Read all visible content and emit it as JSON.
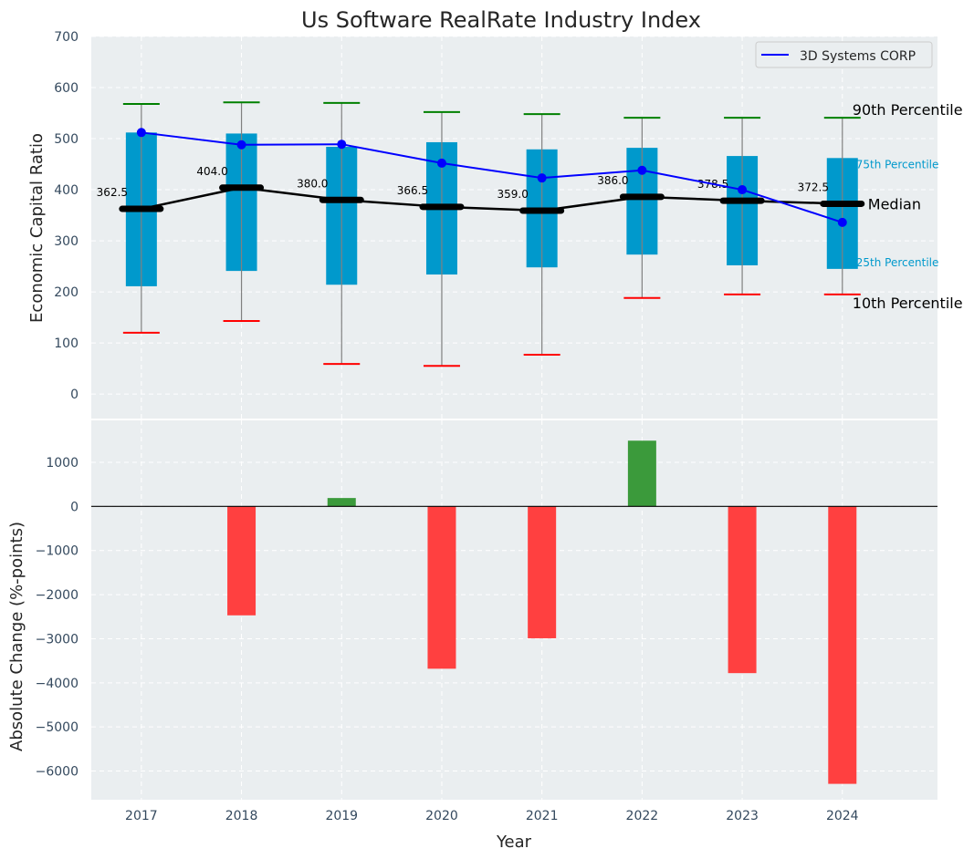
{
  "chart_data": [
    {
      "type": "box-percentile",
      "title": "Us Software RealRate Industry Index",
      "xlabel": "",
      "ylabel": "Economic Capital Ratio",
      "ylim": [
        -48,
        700
      ],
      "yticks": [
        0,
        100,
        200,
        300,
        400,
        500,
        600,
        700
      ],
      "xlim": [
        2016.5,
        2024.95
      ],
      "grid": true,
      "legend": {
        "position": "top-right",
        "entries": [
          "3D Systems CORP"
        ]
      },
      "categories": [
        "2017",
        "2018",
        "2019",
        "2020",
        "2021",
        "2022",
        "2023",
        "2024"
      ],
      "p10": [
        120,
        143,
        59,
        55,
        77,
        188,
        195,
        195
      ],
      "p25": [
        211,
        241,
        214,
        234,
        248,
        273,
        252,
        245
      ],
      "median": [
        362.5,
        404.0,
        380.0,
        366.5,
        359.0,
        386.0,
        378.5,
        372.5
      ],
      "p75": [
        512,
        510,
        484,
        493,
        479,
        482,
        466,
        462
      ],
      "p90": [
        568,
        571,
        570,
        552,
        548,
        541,
        541,
        541
      ],
      "median_labels": [
        "362.5",
        "404.0",
        "380.0",
        "366.5",
        "359.0",
        "386.0",
        "378.5",
        "372.5"
      ],
      "series": [
        {
          "name": "3D Systems CORP",
          "values": [
            512,
            488,
            489,
            452,
            423,
            438,
            400,
            336
          ],
          "color": "#0000ff"
        }
      ],
      "annotations": {
        "p90": "90th Percentile",
        "p75": "75th Percentile",
        "median": "Median",
        "p25": "25th Percentile",
        "p10": "10th Percentile"
      },
      "colors": {
        "box": "#0099cc",
        "p90": "#008000",
        "p10": "#ff0000",
        "median": "#000000",
        "whisker": "#808080",
        "background": "#eaeef0"
      }
    },
    {
      "type": "bar",
      "xlabel": "Year",
      "ylabel": "Absolute Change (%-points)",
      "ylim": [
        -6650,
        1950
      ],
      "yticks": [
        1000,
        0,
        -1000,
        -2000,
        -3000,
        -4000,
        -5000,
        -6000
      ],
      "ytick_labels": [
        "1000",
        "0",
        "−1000",
        "−2000",
        "−3000",
        "−4000",
        "−5000",
        "−6000"
      ],
      "categories": [
        "2017",
        "2018",
        "2019",
        "2020",
        "2021",
        "2022",
        "2023",
        "2024"
      ],
      "values": [
        0,
        -2470,
        190,
        -3680,
        -2990,
        1490,
        -3780,
        -6290
      ],
      "colors": {
        "positive": "#3b9a3b",
        "negative": "#ff4040",
        "zero_line": "#000000"
      },
      "grid": true
    }
  ]
}
